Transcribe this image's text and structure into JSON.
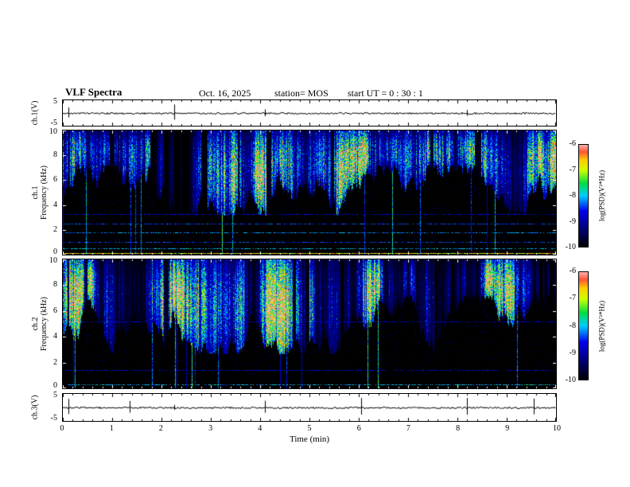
{
  "header": {
    "title": "VLF Spectra",
    "date": "Oct. 16, 2025",
    "station": "station= MOS",
    "start_ut": "start UT =  0 : 30 : 1"
  },
  "chart_data": {
    "type": "heatmap",
    "subtype": "vlf-spectrogram-stack",
    "title": "VLF Spectra",
    "xlabel": "Time (min)",
    "x_range": [
      0,
      10
    ],
    "x_ticks": [
      0,
      1,
      2,
      3,
      4,
      5,
      6,
      7,
      8,
      9,
      10
    ],
    "grid": false,
    "colorbar": {
      "label": "log(PSD)(V²*Hz)",
      "ticks": [
        -6,
        -7,
        -8,
        -9,
        -10
      ],
      "range": [
        -10,
        -6
      ],
      "position": "right"
    },
    "colormap_stops": [
      {
        "p": 0.0,
        "c": "#000000"
      },
      {
        "p": 0.15,
        "c": "#000066"
      },
      {
        "p": 0.35,
        "c": "#0000ee"
      },
      {
        "p": 0.5,
        "c": "#00ccff"
      },
      {
        "p": 0.62,
        "c": "#00dd44"
      },
      {
        "p": 0.75,
        "c": "#ccff00"
      },
      {
        "p": 0.85,
        "c": "#ffcc00"
      },
      {
        "p": 0.93,
        "c": "#ff5533"
      },
      {
        "p": 1.0,
        "c": "#ffb0b0"
      }
    ],
    "panels": [
      {
        "id": "ch1_wave",
        "kind": "waveform",
        "label": "ch.1(V)",
        "ylim": [
          -5,
          5
        ],
        "yticks": [
          5,
          -5
        ],
        "baseline_v": 0,
        "spike_times_min": [
          0.12,
          2.25,
          4.1,
          8.2
        ],
        "description": "Near-flat ch.1 voltage trace at ~0 V with low-amplitude noise and a few sub-volt impulses."
      },
      {
        "id": "ch1_spec",
        "kind": "spectrogram",
        "label": "ch.1",
        "ylabel": "Frequency (kHz)",
        "ylim": [
          0,
          10
        ],
        "yticks": [
          0,
          2,
          4,
          6,
          8,
          10
        ],
        "activity_band_kHz": [
          5,
          10
        ],
        "intensity_boost": 0,
        "horizontal_lines": [
          {
            "f_khz": 0.15,
            "v": 0.8
          },
          {
            "f_khz": 0.5,
            "v": 0.5
          },
          {
            "f_khz": 1.0,
            "v": 0.4
          },
          {
            "f_khz": 1.8,
            "v": 0.45
          },
          {
            "f_khz": 2.5,
            "v": 0.4
          },
          {
            "f_khz": 3.3,
            "v": 0.32
          }
        ],
        "description": "Dense impulsive sferic streaks between ~5 and 10 kHz (blue/green/yellow, sporadic red) over a black background; occasional thin full-height vertical lines; faint dotted horizontal interference lines below ~3.5 kHz and a bright line near 0 kHz."
      },
      {
        "id": "ch2_spec",
        "kind": "spectrogram",
        "label": "ch.2",
        "ylabel": "Frequency (kHz)",
        "ylim": [
          0,
          10
        ],
        "yticks": [
          0,
          2,
          4,
          6,
          8,
          10
        ],
        "activity_band_kHz": [
          4.5,
          10
        ],
        "intensity_boost": 0.08,
        "horizontal_lines": [
          {
            "f_khz": 0.3,
            "v": 0.5
          },
          {
            "f_khz": 1.4,
            "v": 0.32
          },
          {
            "f_khz": 5.2,
            "v": 0.3
          }
        ],
        "description": "Similar impulsive activity ~4.5-10 kHz with brighter green/yellow cores; sparse thin vertical lines reaching 0 kHz; faint dotted horizontal line near 5 kHz."
      },
      {
        "id": "ch3_wave",
        "kind": "waveform",
        "label": "ch.3(V)",
        "ylim": [
          -5,
          5
        ],
        "yticks": [
          5,
          -5
        ],
        "baseline_v": 0,
        "spike_times_min": [
          0.12,
          1.35,
          2.25,
          4.1,
          6.05,
          8.2,
          9.55
        ],
        "description": "Near-flat ch.3 voltage trace at ~0 V with sparse small spikes."
      }
    ]
  }
}
